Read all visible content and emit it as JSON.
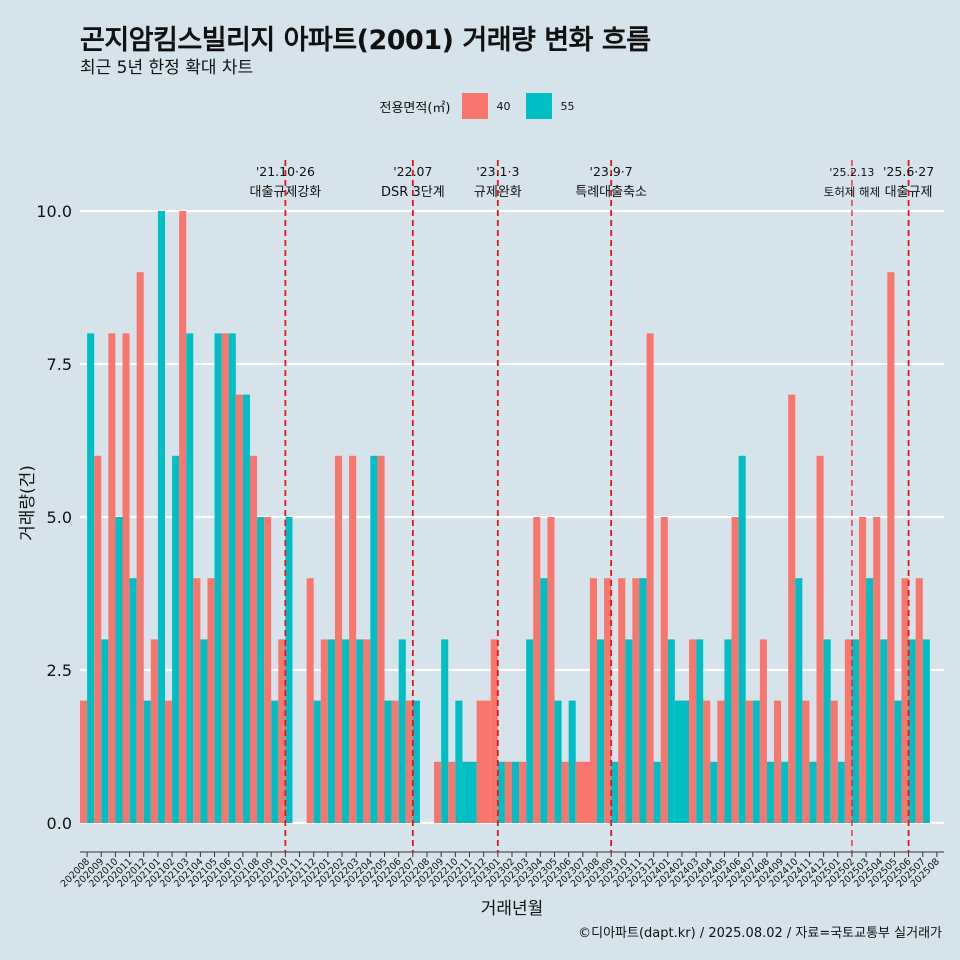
{
  "header": {
    "title": "곤지암킴스빌리지 아파트(2001) 거래량 변화 흐름",
    "subtitle": "최근 5년 한정 확대 차트"
  },
  "legend": {
    "title": "전용면적(㎡)",
    "items": [
      {
        "label": "40",
        "color": "#f8766d"
      },
      {
        "label": "55",
        "color": "#00bfc4"
      }
    ]
  },
  "caption": "©디아파트(dapt.kr) / 2025.08.02 / 자료=국토교통부 실거래가",
  "chart_data": {
    "type": "bar",
    "title": "곤지암킴스빌리지 아파트(2001) 거래량 변화 흐름",
    "xlabel": "거래년월",
    "ylabel": "거래량(건)",
    "ylim": [
      0,
      10.6
    ],
    "yticks": [
      0,
      2.5,
      5,
      7.5,
      10
    ],
    "ytick_labels": [
      "0.0",
      "2.5",
      "5.0",
      "7.5",
      "10.0"
    ],
    "grid": true,
    "categories": [
      "202008",
      "202009",
      "202010",
      "202011",
      "202012",
      "202101",
      "202102",
      "202103",
      "202104",
      "202105",
      "202106",
      "202107",
      "202108",
      "202109",
      "202110",
      "202111",
      "202112",
      "202201",
      "202202",
      "202203",
      "202204",
      "202205",
      "202206",
      "202207",
      "202208",
      "202209",
      "202210",
      "202211",
      "202212",
      "202301",
      "202302",
      "202303",
      "202304",
      "202305",
      "202306",
      "202307",
      "202308",
      "202309",
      "202310",
      "202311",
      "202312",
      "202401",
      "202402",
      "202403",
      "202404",
      "202405",
      "202406",
      "202407",
      "202408",
      "202409",
      "202410",
      "202411",
      "202412",
      "202501",
      "202502",
      "202503",
      "202504",
      "202505",
      "202506",
      "202507",
      "202508"
    ],
    "series": [
      {
        "name": "40",
        "color": "#f8766d",
        "values": [
          2,
          6,
          8,
          8,
          9,
          3,
          2,
          10,
          4,
          4,
          8,
          7,
          6,
          5,
          3,
          null,
          4,
          3,
          6,
          6,
          3,
          6,
          2,
          2,
          null,
          1,
          1,
          null,
          2,
          3,
          1,
          1,
          5,
          5,
          1,
          1,
          4,
          4,
          4,
          4,
          8,
          5,
          null,
          3,
          2,
          2,
          5,
          2,
          3,
          2,
          7,
          2,
          6,
          2,
          3,
          5,
          5,
          9,
          4,
          4,
          null
        ]
      },
      {
        "name": "55",
        "color": "#00bfc4",
        "values": [
          8,
          3,
          5,
          4,
          2,
          10,
          6,
          8,
          3,
          8,
          8,
          7,
          5,
          2,
          5,
          null,
          2,
          3,
          3,
          3,
          6,
          2,
          3,
          2,
          null,
          3,
          2,
          1,
          null,
          1,
          1,
          3,
          4,
          2,
          2,
          null,
          3,
          1,
          3,
          4,
          1,
          3,
          2,
          3,
          1,
          3,
          6,
          2,
          1,
          1,
          4,
          1,
          3,
          1,
          3,
          4,
          3,
          2,
          3,
          3,
          null
        ]
      }
    ],
    "annotations": [
      {
        "at": "202110",
        "date": "'21.10·26",
        "label": "대출규제강화",
        "style": "bold"
      },
      {
        "at": "202207",
        "date": "'22.07",
        "label": "DSR 3단계",
        "style": "bold"
      },
      {
        "at": "202301",
        "date": "'23.1·3",
        "label": "규제완화",
        "style": "bold"
      },
      {
        "at": "202309",
        "date": "'23.9·7",
        "label": "특례대출축소",
        "style": "bold"
      },
      {
        "at": "202502",
        "date": "'25.2.13",
        "label": "토허제 해제",
        "style": "thin"
      },
      {
        "at": "202506",
        "date": "'25.6·27",
        "label": "대출규제",
        "style": "bold"
      }
    ]
  }
}
